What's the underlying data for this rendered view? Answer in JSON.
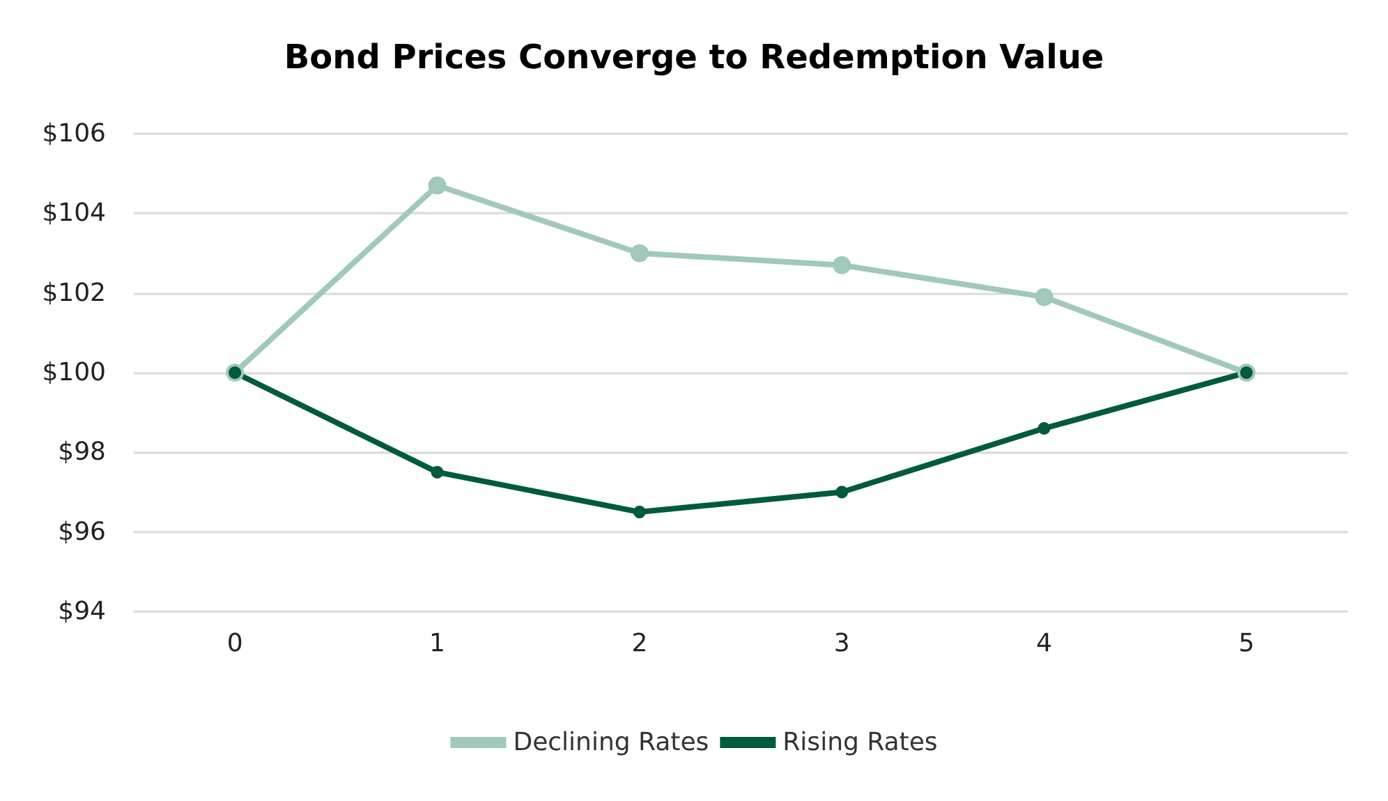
{
  "chart_data": {
    "type": "line",
    "title": "Bond Prices Converge to Redemption Value",
    "categories": [
      "0",
      "1",
      "2",
      "3",
      "4",
      "5"
    ],
    "series": [
      {
        "name": "Declining Rates",
        "color": "#a0c8bb",
        "values": [
          100,
          104.7,
          103.0,
          102.7,
          101.9,
          100
        ]
      },
      {
        "name": "Rising Rates",
        "color": "#005a3c",
        "values": [
          100,
          97.5,
          96.5,
          97.0,
          98.6,
          100
        ]
      }
    ],
    "ylim": [
      94,
      106
    ],
    "yticks": [
      {
        "value": 94,
        "label": "$94"
      },
      {
        "value": 96,
        "label": "$96"
      },
      {
        "value": 98,
        "label": "$98"
      },
      {
        "value": 100,
        "label": "$100"
      },
      {
        "value": 102,
        "label": "$102"
      },
      {
        "value": 104,
        "label": "$104"
      },
      {
        "value": 106,
        "label": "$106"
      }
    ],
    "grid": "y",
    "legend": "bottom",
    "marker": "circle",
    "line_style": "solid"
  }
}
